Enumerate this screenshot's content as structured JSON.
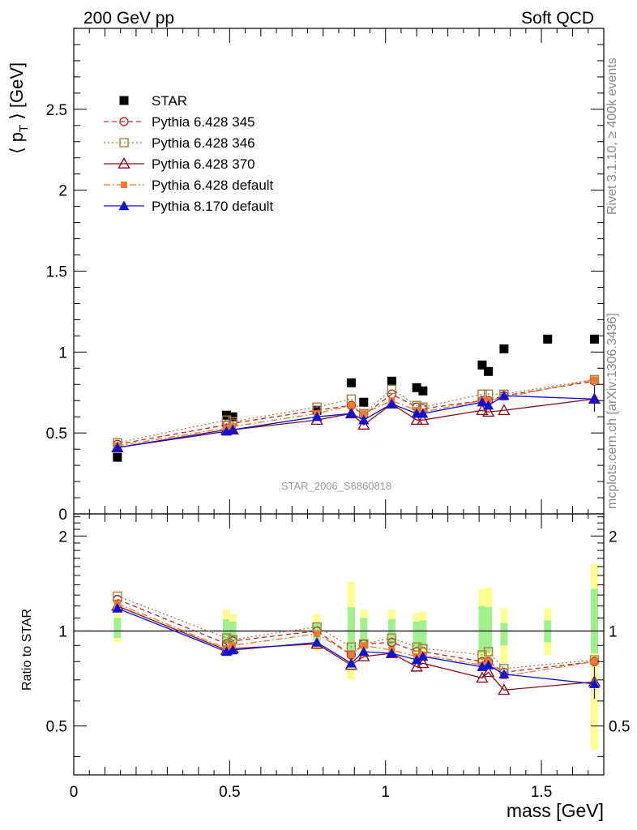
{
  "header": {
    "left": "200 GeV pp",
    "right": "Soft QCD"
  },
  "side_labels": {
    "top": "Rivet 3.1.10, ≥ 400k events",
    "bottom": "mcplots.cern.ch [arXiv:1306.3436]"
  },
  "watermark": "STAR_2006_S6860818",
  "chart_data": [
    {
      "type": "scatter",
      "panel": "main",
      "ylabel_parts": [
        "⟨ p",
        "T",
        " ⟩ [GeV]"
      ],
      "xlim": [
        0,
        1.7
      ],
      "ylim": [
        0,
        3.0
      ],
      "y_ticks": [
        0,
        0.5,
        1,
        1.5,
        2,
        2.5
      ],
      "y_tick_labels": [
        "0",
        "0.5",
        "1",
        "1.5",
        "2",
        "2.5"
      ],
      "legend_position": "top-left",
      "series": [
        {
          "name": "STAR",
          "color": "#000000",
          "marker": "square-filled",
          "line": "none",
          "x": [
            0.14,
            0.49,
            0.51,
            0.78,
            0.89,
            0.93,
            1.02,
            1.1,
            1.12,
            1.31,
            1.33,
            1.38,
            1.52,
            1.67
          ],
          "y": [
            0.35,
            0.61,
            0.6,
            0.64,
            0.81,
            0.69,
            0.82,
            0.78,
            0.76,
            0.92,
            0.88,
            1.02,
            1.08,
            1.08
          ]
        },
        {
          "name": "Pythia 6.428 345",
          "color": "#b03030",
          "marker": "circle-open",
          "line": "dashed",
          "x": [
            0.14,
            0.49,
            0.51,
            0.78,
            0.89,
            0.93,
            1.02,
            1.1,
            1.12,
            1.31,
            1.33,
            1.38,
            1.67
          ],
          "y": [
            0.43,
            0.55,
            0.56,
            0.64,
            0.67,
            0.61,
            0.74,
            0.66,
            0.65,
            0.7,
            0.7,
            0.73,
            0.82
          ]
        },
        {
          "name": "Pythia 6.428 346",
          "color": "#a08040",
          "marker": "square-open",
          "line": "dotted",
          "x": [
            0.14,
            0.49,
            0.51,
            0.78,
            0.89,
            0.93,
            1.02,
            1.1,
            1.12,
            1.31,
            1.33,
            1.38,
            1.67
          ],
          "y": [
            0.44,
            0.58,
            0.57,
            0.66,
            0.71,
            0.62,
            0.77,
            0.67,
            0.66,
            0.74,
            0.74,
            0.74,
            0.83
          ]
        },
        {
          "name": "Pythia 6.428 370",
          "color": "#8a1020",
          "marker": "triangle-open",
          "line": "solid",
          "x": [
            0.14,
            0.49,
            0.51,
            0.78,
            0.89,
            0.93,
            1.02,
            1.1,
            1.12,
            1.31,
            1.33,
            1.38,
            1.67
          ],
          "y": [
            0.41,
            0.52,
            0.52,
            0.58,
            0.62,
            0.55,
            0.68,
            0.58,
            0.58,
            0.64,
            0.63,
            0.64,
            0.71
          ]
        },
        {
          "name": "Pythia 6.428 default",
          "color": "#f07830",
          "marker": "square-filled-small",
          "line": "dashdot",
          "x": [
            0.14,
            0.49,
            0.51,
            0.78,
            0.89,
            0.93,
            1.02,
            1.1,
            1.12,
            1.31,
            1.33,
            1.38,
            1.67
          ],
          "y": [
            0.42,
            0.53,
            0.54,
            0.62,
            0.67,
            0.62,
            0.7,
            0.64,
            0.63,
            0.7,
            0.7,
            0.72,
            0.83
          ]
        },
        {
          "name": "Pythia 8.170 default",
          "color": "#1010d0",
          "marker": "triangle-filled",
          "line": "solid",
          "x": [
            0.14,
            0.49,
            0.51,
            0.78,
            0.89,
            0.93,
            1.02,
            1.1,
            1.12,
            1.31,
            1.33,
            1.38,
            1.67
          ],
          "y": [
            0.41,
            0.51,
            0.52,
            0.6,
            0.62,
            0.58,
            0.68,
            0.62,
            0.62,
            0.69,
            0.67,
            0.73,
            0.71
          ]
        }
      ]
    },
    {
      "type": "scatter",
      "panel": "ratio",
      "xlabel": "mass [GeV]",
      "ylabel": "Ratio to STAR",
      "xlim": [
        0,
        1.7
      ],
      "ylim": [
        0.35,
        2.35
      ],
      "y_ticks": [
        0.5,
        1,
        2
      ],
      "y_tick_labels": [
        "0.5",
        "1",
        "2"
      ],
      "x_ticks": [
        0,
        0.5,
        1,
        1.5
      ],
      "x_tick_labels": [
        "0",
        "0.5",
        "1",
        "1.5"
      ],
      "reference_line": 1,
      "uncertainty_bands": {
        "x": [
          0.14,
          0.49,
          0.51,
          0.78,
          0.89,
          0.93,
          1.02,
          1.1,
          1.12,
          1.31,
          1.33,
          1.38,
          1.52,
          1.67
        ],
        "inner": [
          [
            0.95,
            1.1
          ],
          [
            0.89,
            1.09
          ],
          [
            0.9,
            1.07
          ],
          [
            0.93,
            1.06
          ],
          [
            0.83,
            1.19
          ],
          [
            0.88,
            1.1
          ],
          [
            0.89,
            1.09
          ],
          [
            0.89,
            1.07
          ],
          [
            0.89,
            1.08
          ],
          [
            0.85,
            1.2
          ],
          [
            0.86,
            1.19
          ],
          [
            0.9,
            1.06
          ],
          [
            0.92,
            1.08
          ],
          [
            0.85,
            1.36
          ]
        ],
        "outer": [
          [
            0.92,
            1.13
          ],
          [
            0.83,
            1.17
          ],
          [
            0.85,
            1.13
          ],
          [
            0.86,
            1.13
          ],
          [
            0.7,
            1.43
          ],
          [
            0.82,
            1.17
          ],
          [
            0.83,
            1.17
          ],
          [
            0.81,
            1.14
          ],
          [
            0.81,
            1.15
          ],
          [
            0.74,
            1.36
          ],
          [
            0.76,
            1.37
          ],
          [
            0.79,
            1.18
          ],
          [
            0.84,
            1.18
          ],
          [
            0.42,
            1.63
          ]
        ],
        "colors": {
          "inner": "#a0f090",
          "outer": "#ffff90"
        }
      },
      "series": [
        {
          "name": "Pythia 6.428 345",
          "color": "#b03030",
          "marker": "circle-open",
          "line": "dashed",
          "x": [
            0.14,
            0.49,
            0.51,
            0.78,
            0.89,
            0.93,
            1.02,
            1.1,
            1.12,
            1.31,
            1.33,
            1.38,
            1.67
          ],
          "y": [
            1.26,
            0.91,
            0.93,
            1.0,
            0.84,
            0.91,
            0.92,
            0.86,
            0.86,
            0.8,
            0.8,
            0.74,
            0.8
          ]
        },
        {
          "name": "Pythia 6.428 346",
          "color": "#a08040",
          "marker": "square-open",
          "line": "dotted",
          "x": [
            0.14,
            0.49,
            0.51,
            0.78,
            0.89,
            0.93,
            1.02,
            1.1,
            1.12,
            1.31,
            1.33,
            1.38,
            1.67
          ],
          "y": [
            1.29,
            0.95,
            0.94,
            1.03,
            0.89,
            0.91,
            0.95,
            0.89,
            0.88,
            0.84,
            0.86,
            0.76,
            0.81
          ]
        },
        {
          "name": "Pythia 6.428 370",
          "color": "#8a1020",
          "marker": "triangle-open",
          "line": "solid",
          "x": [
            0.14,
            0.49,
            0.51,
            0.78,
            0.89,
            0.93,
            1.02,
            1.1,
            1.12,
            1.31,
            1.33,
            1.38,
            1.67
          ],
          "y": [
            1.2,
            0.87,
            0.88,
            0.91,
            0.78,
            0.83,
            0.85,
            0.77,
            0.79,
            0.71,
            0.74,
            0.65,
            0.69
          ]
        },
        {
          "name": "Pythia 6.428 default",
          "color": "#f07830",
          "marker": "square-filled-small",
          "line": "dashdot",
          "x": [
            0.14,
            0.49,
            0.51,
            0.78,
            0.89,
            0.93,
            1.02,
            1.1,
            1.12,
            1.31,
            1.33,
            1.38,
            1.67
          ],
          "y": [
            1.22,
            0.88,
            0.9,
            0.98,
            0.84,
            0.9,
            0.87,
            0.83,
            0.84,
            0.78,
            0.8,
            0.72,
            0.8
          ]
        },
        {
          "name": "Pythia 8.170 default",
          "color": "#1010d0",
          "marker": "triangle-filled",
          "line": "solid",
          "x": [
            0.14,
            0.49,
            0.51,
            0.78,
            0.89,
            0.93,
            1.02,
            1.1,
            1.12,
            1.31,
            1.33,
            1.38,
            1.67
          ],
          "y": [
            1.18,
            0.86,
            0.87,
            0.92,
            0.79,
            0.86,
            0.85,
            0.81,
            0.83,
            0.77,
            0.78,
            0.73,
            0.68
          ]
        }
      ]
    }
  ]
}
